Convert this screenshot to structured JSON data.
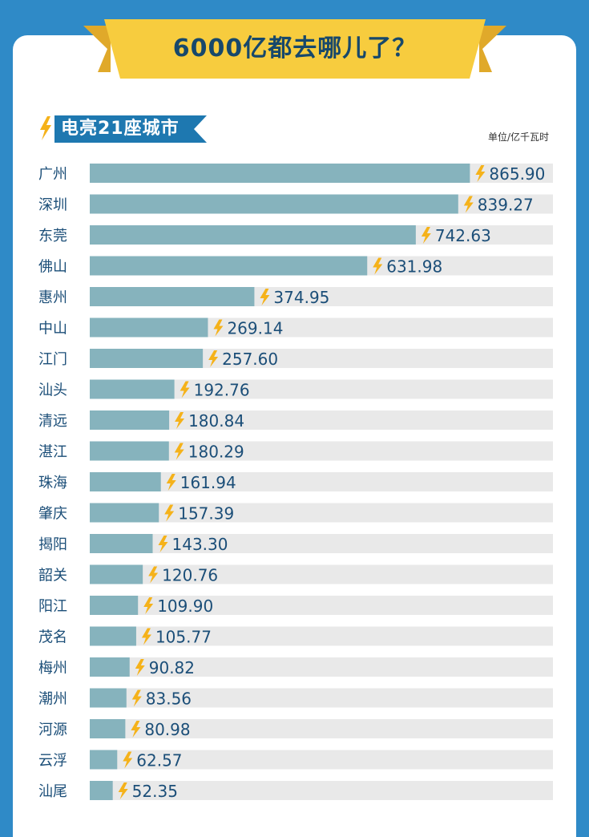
{
  "colors": {
    "page_bg": "#2f8ac7",
    "card_bg": "#ffffff",
    "banner_fill": "#f7cc3e",
    "title_text": "#17486b",
    "subtitle_bg": "#1e78b0",
    "bar_fill": "#86b3bd",
    "track_fill": "#e9e9e9",
    "label_text": "#1b4e78",
    "bolt_fill": "#f5b21a"
  },
  "icons": {
    "value_marker": "lightning-bolt-icon"
  },
  "header": {
    "title": "6000亿都去哪儿了？",
    "subtitle": "电亮21座城市",
    "unit": "单位/亿千瓦时"
  },
  "chart_data": {
    "type": "bar",
    "orientation": "horizontal",
    "title": "电亮21座城市",
    "unit": "亿千瓦时",
    "categories": [
      "广州",
      "深圳",
      "东莞",
      "佛山",
      "惠州",
      "中山",
      "江门",
      "汕头",
      "清远",
      "湛江",
      "珠海",
      "肇庆",
      "揭阳",
      "韶关",
      "阳江",
      "茂名",
      "梅州",
      "潮州",
      "河源",
      "云浮",
      "汕尾"
    ],
    "values": [
      865.9,
      839.27,
      742.63,
      631.98,
      374.95,
      269.14,
      257.6,
      192.76,
      180.84,
      180.29,
      161.94,
      157.39,
      143.3,
      120.76,
      109.9,
      105.77,
      90.82,
      83.56,
      80.98,
      62.57,
      52.35
    ],
    "value_labels": [
      "865.90",
      "839.27",
      "742.63",
      "631.98",
      "374.95",
      "269.14",
      "257.60",
      "192.76",
      "180.84",
      "180.29",
      "161.94",
      "157.39",
      "143.30",
      "120.76",
      "109.90",
      "105.77",
      "90.82",
      "83.56",
      "80.98",
      "62.57",
      "52.35"
    ],
    "xlim": [
      0,
      1055
    ],
    "grid": false,
    "legend": "none"
  }
}
